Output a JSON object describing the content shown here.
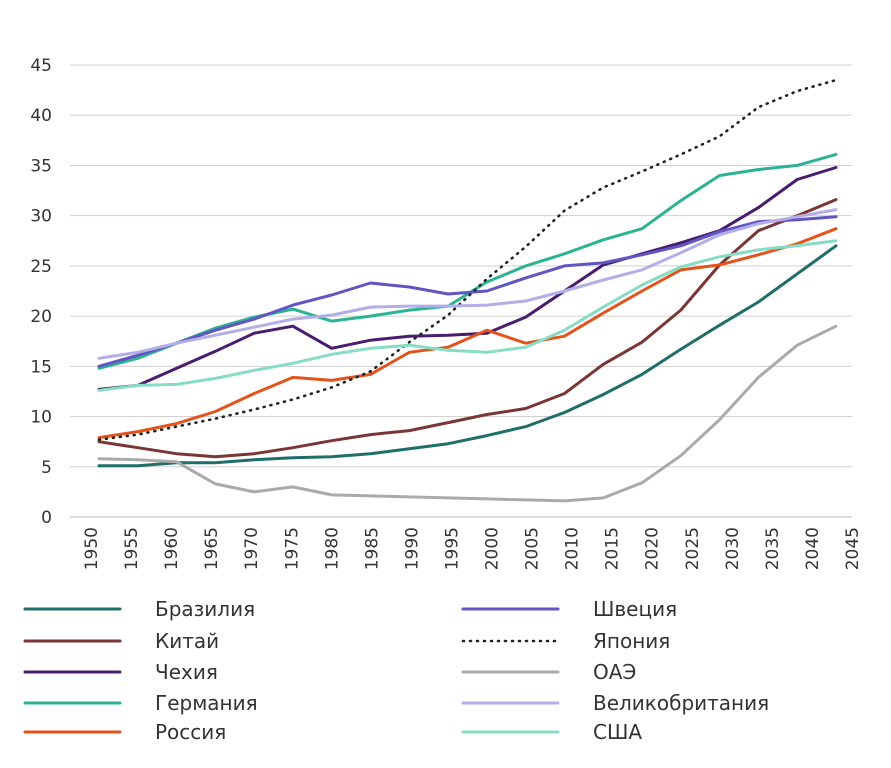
{
  "chart_data": {
    "type": "line",
    "title": "",
    "xlabel": "",
    "ylabel": "",
    "xlim": [
      1950,
      2045
    ],
    "ylim": [
      0,
      45
    ],
    "x_ticks": [
      "1950",
      "1955",
      "1960",
      "1965",
      "1970",
      "1975",
      "1980",
      "1985",
      "1990",
      "1995",
      "2000",
      "2005",
      "2010",
      "2015",
      "2020",
      "2025",
      "2030",
      "2035",
      "2040",
      "2045"
    ],
    "y_ticks": [
      "0",
      "5",
      "10",
      "15",
      "20",
      "25",
      "30",
      "35",
      "40",
      "45"
    ],
    "grid": "horizontal",
    "legend_position": "bottom",
    "x": [
      1950,
      1955,
      1960,
      1965,
      1970,
      1975,
      1980,
      1985,
      1990,
      1995,
      2000,
      2005,
      2010,
      2015,
      2020,
      2025,
      2030,
      2035,
      2040,
      2045
    ],
    "series": [
      {
        "name": "Бразилия",
        "color": "#1f6e6a",
        "style": "solid",
        "values": [
          5.1,
          5.1,
          5.4,
          5.4,
          5.7,
          5.9,
          6.0,
          6.3,
          6.8,
          7.3,
          8.1,
          9.0,
          10.4,
          12.2,
          14.2,
          16.7,
          19.1,
          21.4,
          24.2,
          27.0
        ]
      },
      {
        "name": "Китай",
        "color": "#7a3535",
        "style": "solid",
        "values": [
          7.5,
          6.9,
          6.3,
          6.0,
          6.3,
          6.9,
          7.6,
          8.2,
          8.6,
          9.4,
          10.2,
          10.8,
          12.3,
          15.2,
          17.4,
          20.6,
          25.1,
          28.5,
          30.0,
          31.6
        ]
      },
      {
        "name": "Чехия",
        "color": "#4a1c6e",
        "style": "solid",
        "values": [
          12.7,
          13.1,
          14.8,
          16.5,
          18.3,
          19.0,
          16.8,
          17.6,
          18.0,
          18.1,
          18.3,
          19.9,
          22.5,
          25.1,
          26.2,
          27.3,
          28.5,
          30.8,
          33.6,
          34.8
        ]
      },
      {
        "name": "Германия",
        "color": "#2bb394",
        "style": "solid",
        "values": [
          14.8,
          15.8,
          17.3,
          18.8,
          19.9,
          20.7,
          19.5,
          20.0,
          20.6,
          21.0,
          23.4,
          25.0,
          26.2,
          27.6,
          28.7,
          31.5,
          34.0,
          34.6,
          35.0,
          36.1
        ]
      },
      {
        "name": "Россия",
        "color": "#e2541b",
        "style": "solid",
        "values": [
          7.9,
          8.5,
          9.3,
          10.5,
          12.3,
          13.9,
          13.6,
          14.2,
          16.4,
          16.9,
          18.6,
          17.3,
          18.0,
          20.3,
          22.5,
          24.6,
          25.1,
          26.1,
          27.2,
          28.7
        ]
      },
      {
        "name": "Швеция",
        "color": "#6155c4",
        "style": "solid",
        "values": [
          15.0,
          16.1,
          17.3,
          18.6,
          19.7,
          21.1,
          22.1,
          23.3,
          22.9,
          22.2,
          22.5,
          23.8,
          25.0,
          25.3,
          26.1,
          27.0,
          28.4,
          29.4,
          29.6,
          29.9
        ]
      },
      {
        "name": "Япония",
        "color": "#222222",
        "style": "dotted",
        "values": [
          7.7,
          8.2,
          9.0,
          9.8,
          10.7,
          11.7,
          12.9,
          14.5,
          17.4,
          20.1,
          23.7,
          26.9,
          30.5,
          32.8,
          34.4,
          36.1,
          37.9,
          40.8,
          42.4,
          43.5
        ]
      },
      {
        "name": "ОАЭ",
        "color": "#aaaaaa",
        "style": "solid",
        "values": [
          5.8,
          5.7,
          5.5,
          3.3,
          2.5,
          3.0,
          2.2,
          2.1,
          2.0,
          1.9,
          1.8,
          1.7,
          1.6,
          1.9,
          3.4,
          6.1,
          9.7,
          13.9,
          17.1,
          19.0
        ]
      },
      {
        "name": "Великобритания",
        "color": "#b3aee8",
        "style": "solid",
        "values": [
          15.8,
          16.4,
          17.3,
          18.1,
          18.9,
          19.7,
          20.1,
          20.9,
          21.0,
          21.0,
          21.1,
          21.5,
          22.5,
          23.6,
          24.6,
          26.3,
          28.1,
          29.2,
          29.9,
          30.6
        ]
      },
      {
        "name": "США",
        "color": "#86dcc5",
        "style": "solid",
        "values": [
          12.6,
          13.1,
          13.2,
          13.8,
          14.6,
          15.3,
          16.2,
          16.8,
          17.1,
          16.6,
          16.4,
          16.9,
          18.6,
          20.9,
          23.1,
          24.9,
          25.9,
          26.6,
          27.0,
          27.5
        ]
      }
    ]
  }
}
